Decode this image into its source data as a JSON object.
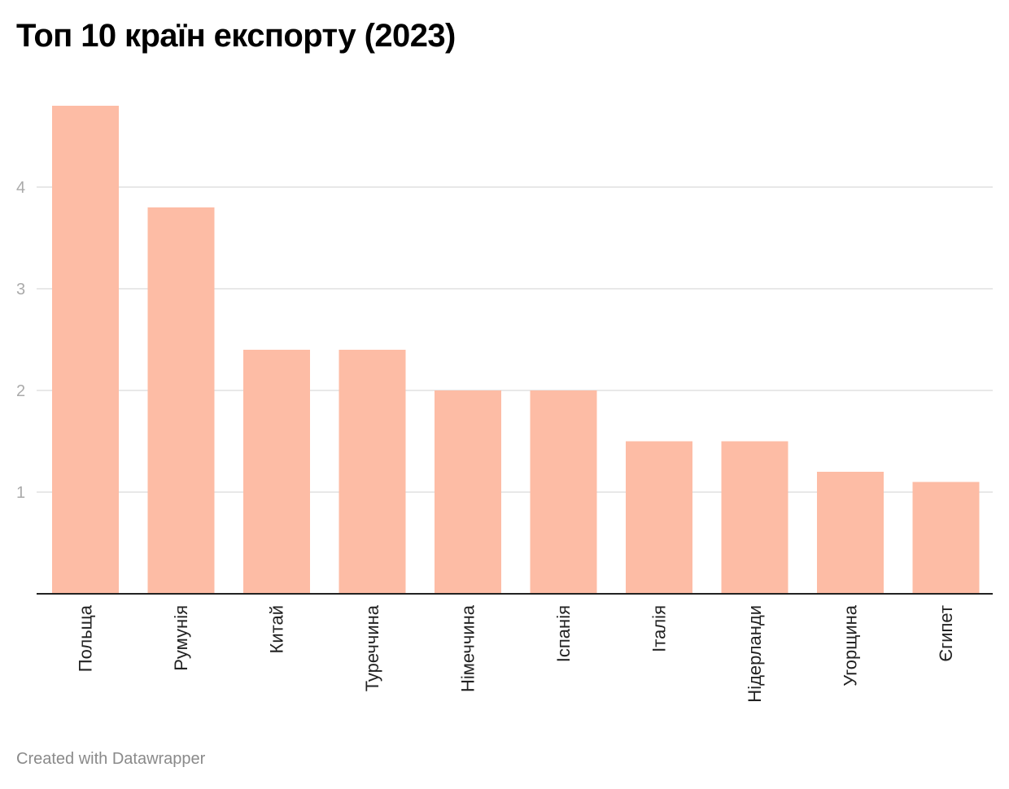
{
  "chart_data": {
    "type": "bar",
    "title": "Топ 10 країн експорту (2023)",
    "categories": [
      "Польща",
      "Румунія",
      "Китай",
      "Туреччина",
      "Німеччина",
      "Іспанія",
      "Італія",
      "Нідерланди",
      "Угорщина",
      "Єгипет"
    ],
    "values": [
      4.8,
      3.8,
      2.4,
      2.4,
      2.0,
      2.0,
      1.5,
      1.5,
      1.2,
      1.1
    ],
    "xlabel": "",
    "ylabel": "",
    "ylim": [
      0,
      4.8
    ],
    "yticks": [
      1,
      2,
      3,
      4
    ],
    "grid": true,
    "bar_color": "#fdbca5"
  },
  "footer": {
    "credit": "Created with Datawrapper"
  }
}
